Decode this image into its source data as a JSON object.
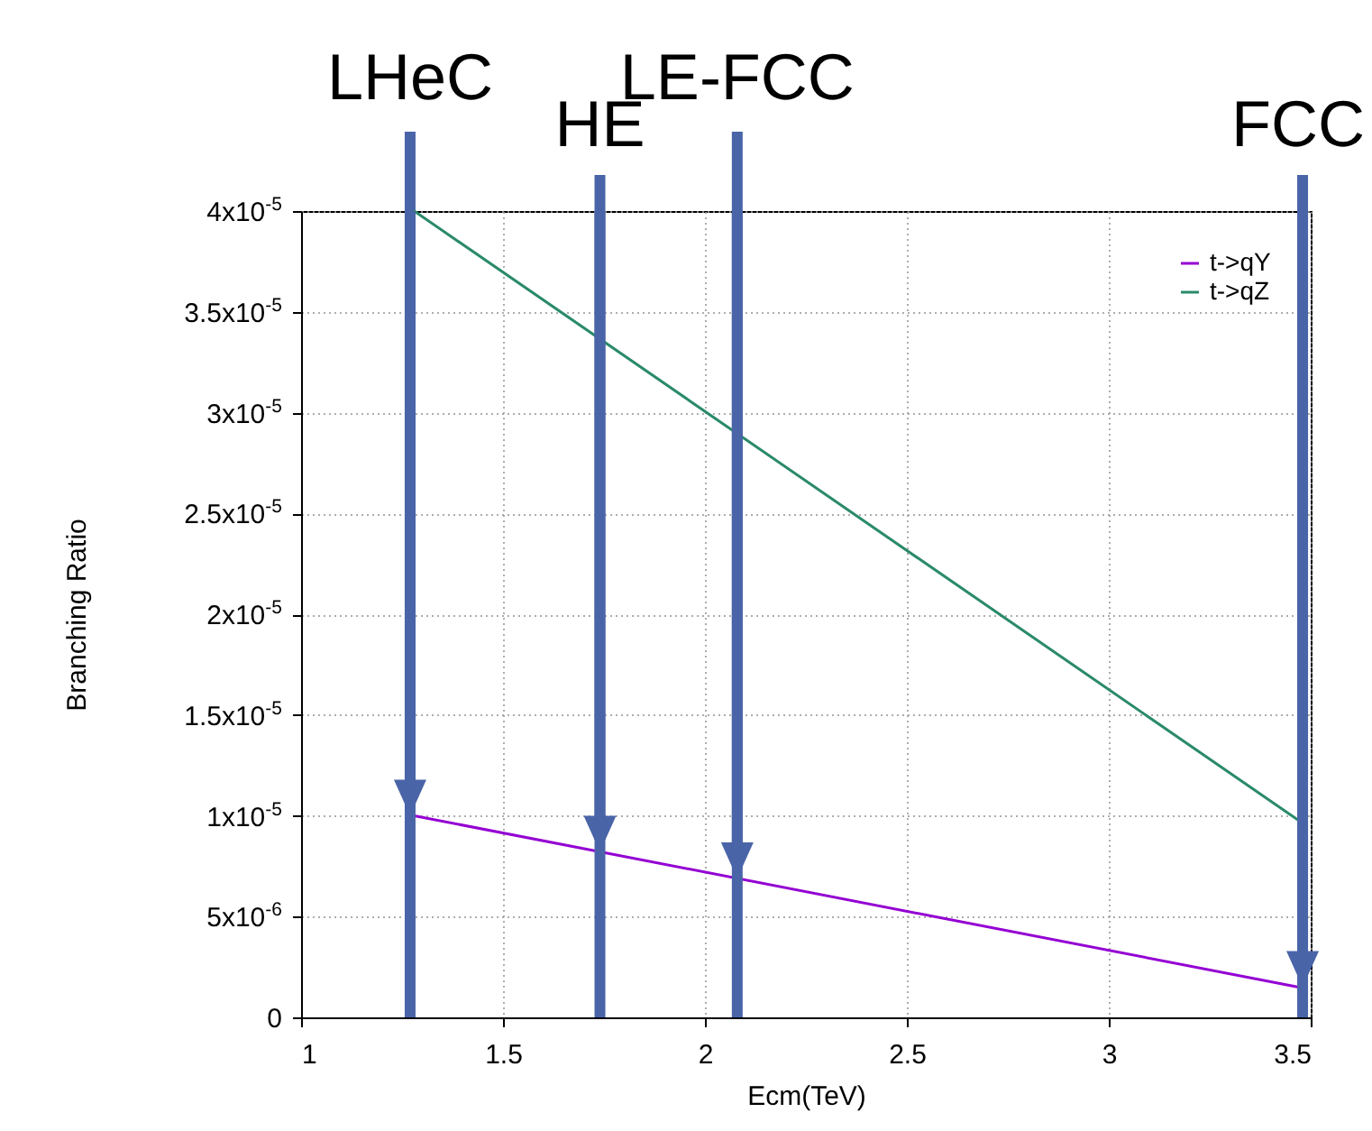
{
  "chart_data": {
    "type": "line",
    "xlabel": "Ecm(TeV)",
    "ylabel": "Branching Ratio",
    "series": [
      {
        "name": "t->qY",
        "color": "#9400d3",
        "x": [
          1.28,
          3.47
        ],
        "values": [
          1e-05,
          1.5e-06
        ]
      },
      {
        "name": "t->qZ",
        "color": "#2a8a6a",
        "x": [
          1.28,
          3.49
        ],
        "values": [
          4e-05,
          9.5e-06
        ]
      }
    ],
    "xlim": [
      1,
      3.5
    ],
    "xticks": [
      1,
      1.5,
      2,
      2.5,
      3,
      3.5
    ],
    "ylim": [
      0,
      4e-05
    ],
    "yticks": [
      0,
      {
        "value": 5e-06,
        "label": "5x10$^{-6}$"
      },
      {
        "value": 1e-05,
        "label": "1x10$^{-5}$"
      },
      {
        "value": 1.5e-05,
        "label": "1.5x10$^{-5}$"
      },
      {
        "value": 2e-05,
        "label": "2x10$^{-5}$"
      },
      {
        "value": 2.5e-05,
        "label": "2.5x10$^{-5}$"
      },
      {
        "value": 3e-05,
        "label": "3x10$^{-5}$"
      },
      {
        "value": 3.5e-05,
        "label": "3.5x10$^{-5}$"
      },
      {
        "value": 4e-05,
        "label": "4x10$^{-5}$"
      }
    ],
    "grid": true,
    "legend": "top right",
    "marker": "none",
    "line_style": "solid",
    "ref_lines": [
      {
        "axis": "x",
        "value": 1.27,
        "label": "LHeC",
        "color": "#4a64a8"
      },
      {
        "axis": "x",
        "value": 1.74,
        "label": "HE",
        "color": "#4a64a8"
      },
      {
        "axis": "x",
        "value": 2.08,
        "label": "LE-FCC",
        "color": "#4a64a8"
      },
      {
        "axis": "x",
        "value": 3.48,
        "label": "FCC",
        "color": "#4a64a8"
      }
    ]
  }
}
